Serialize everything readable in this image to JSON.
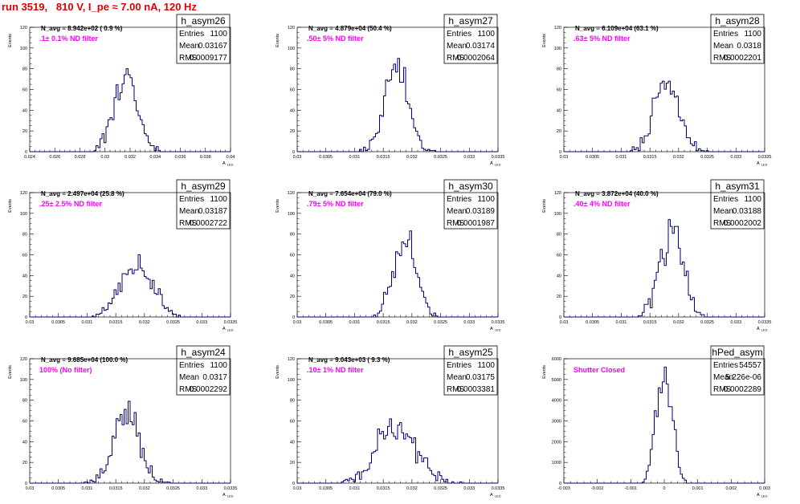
{
  "run_title": "run 3519,   810 V, I_pe ≈ 7.00 nA, 120 Hz",
  "chart_data": [
    {
      "type": "bar",
      "name": "h_asym26",
      "n_avg": "N_avg = 8.942e+02 ( 0.9 %)",
      "filter": ".1± 0.1% ND filter",
      "entries": "1100",
      "mean": "0.03167",
      "rms": "0.0009177",
      "ylabel": "Events",
      "xlabel": "A_LED",
      "ylim": [
        0,
        120
      ],
      "yticks": [
        "0",
        "20",
        "40",
        "60",
        "80",
        "100",
        "120"
      ],
      "xlim": [
        0.024,
        0.04
      ],
      "xticks": [
        "0.024",
        "0.026",
        "0.028",
        "0.03",
        "0.032",
        "0.034",
        "0.036",
        "0.038",
        "0.04"
      ],
      "stats_label": {
        "entries": "Entries",
        "mean": "Mean",
        "rms": "RMS"
      },
      "peak": 80
    },
    {
      "type": "bar",
      "name": "h_asym27",
      "n_avg": "N_avg = 4.879e+04 (50.4 %)",
      "filter": ".50± 5% ND filter",
      "entries": "1100",
      "mean": "0.03174",
      "rms": "0.0002064",
      "ylabel": "Events",
      "xlabel": "A_LED",
      "ylim": [
        0,
        120
      ],
      "yticks": [
        "0",
        "20",
        "40",
        "60",
        "80",
        "100",
        "120"
      ],
      "xlim": [
        0.03,
        0.0335
      ],
      "xticks": [
        "0.03",
        "0.0305",
        "0.031",
        "0.0315",
        "0.032",
        "0.0325",
        "0.033",
        "0.0335"
      ],
      "stats_label": {
        "entries": "Entries",
        "mean": "Mean",
        "rms": "RMS"
      },
      "peak": 90
    },
    {
      "type": "bar",
      "name": "h_asym28",
      "n_avg": "N_avg = 6.109e+04 (63.1 %)",
      "filter": ".63± 5% ND filter",
      "entries": "1100",
      "mean": "0.0318",
      "rms": "0.0002201",
      "ylabel": "Events",
      "xlabel": "A_LED",
      "ylim": [
        0,
        120
      ],
      "yticks": [
        "0",
        "20",
        "40",
        "60",
        "80",
        "100",
        "120"
      ],
      "xlim": [
        0.03,
        0.0335
      ],
      "xticks": [
        "0.03",
        "0.0305",
        "0.031",
        "0.0315",
        "0.032",
        "0.0325",
        "0.033",
        "0.0335"
      ],
      "stats_label": {
        "entries": "Entries",
        "mean": "Mean",
        "rms": "RMS"
      },
      "peak": 68
    },
    {
      "type": "bar",
      "name": "h_asym29",
      "n_avg": "N_avg = 2.497e+04 (25.8 %)",
      "filter": ".25± 2.5% ND filter",
      "entries": "1100",
      "mean": "0.03187",
      "rms": "0.0002722",
      "ylabel": "Events",
      "xlabel": "A_LED",
      "ylim": [
        0,
        120
      ],
      "yticks": [
        "0",
        "20",
        "40",
        "60",
        "80",
        "100",
        "120"
      ],
      "xlim": [
        0.03,
        0.0335
      ],
      "xticks": [
        "0.03",
        "0.0305",
        "0.031",
        "0.0315",
        "0.032",
        "0.0325",
        "0.033",
        "0.0335"
      ],
      "stats_label": {
        "entries": "Entries",
        "mean": "Mean",
        "rms": "RMS"
      },
      "peak": 60
    },
    {
      "type": "bar",
      "name": "h_asym30",
      "n_avg": "N_avg = 7.654e+04 (79.0 %)",
      "filter": ".79± 5% ND filter",
      "entries": "1100",
      "mean": "0.03189",
      "rms": "0.0001987",
      "ylabel": "Events",
      "xlabel": "A_LED",
      "ylim": [
        0,
        120
      ],
      "yticks": [
        "0",
        "20",
        "40",
        "60",
        "80",
        "100",
        "120"
      ],
      "xlim": [
        0.03,
        0.0335
      ],
      "xticks": [
        "0.03",
        "0.0305",
        "0.031",
        "0.0315",
        "0.032",
        "0.0325",
        "0.033",
        "0.0335"
      ],
      "stats_label": {
        "entries": "Entries",
        "mean": "Mean",
        "rms": "RMS"
      },
      "peak": 83
    },
    {
      "type": "bar",
      "name": "h_asym31",
      "n_avg": "N_avg = 3.872e+04 (40.0 %)",
      "filter": ".40± 4% ND filter",
      "entries": "1100",
      "mean": "0.03188",
      "rms": "0.0002002",
      "ylabel": "Events",
      "xlabel": "A_LED",
      "ylim": [
        0,
        120
      ],
      "yticks": [
        "0",
        "20",
        "40",
        "60",
        "80",
        "100",
        "120"
      ],
      "xlim": [
        0.03,
        0.0335
      ],
      "xticks": [
        "0.03",
        "0.0305",
        "0.031",
        "0.0315",
        "0.032",
        "0.0325",
        "0.033",
        "0.0335"
      ],
      "stats_label": {
        "entries": "Entries",
        "mean": "Mean",
        "rms": "RMS"
      },
      "peak": 94
    },
    {
      "type": "bar",
      "name": "h_asym24",
      "n_avg": "N_avg = 9.685e+04 (100.0 %)",
      "filter": "100% (No filter)",
      "entries": "1100",
      "mean": "0.0317",
      "rms": "0.0002292",
      "ylabel": "Events",
      "xlabel": "A_LED",
      "ylim": [
        0,
        120
      ],
      "yticks": [
        "0",
        "20",
        "40",
        "60",
        "80",
        "100",
        "120"
      ],
      "xlim": [
        0.03,
        0.0335
      ],
      "xticks": [
        "0.03",
        "0.0305",
        "0.031",
        "0.0315",
        "0.032",
        "0.0325",
        "0.033",
        "0.0335"
      ],
      "stats_label": {
        "entries": "Entries",
        "mean": "Mean",
        "rms": "RMS"
      },
      "peak": 79
    },
    {
      "type": "bar",
      "name": "h_asym25",
      "n_avg": "N_avg = 9.043e+03 ( 9.3 %)",
      "filter": ".10± 1% ND filter",
      "entries": "1100",
      "mean": "0.03175",
      "rms": "0.0003381",
      "ylabel": "Events",
      "xlabel": "A_LED",
      "ylim": [
        0,
        120
      ],
      "yticks": [
        "0",
        "20",
        "40",
        "60",
        "80",
        "100",
        "120"
      ],
      "xlim": [
        0.03,
        0.0335
      ],
      "xticks": [
        "0.03",
        "0.0305",
        "0.031",
        "0.0315",
        "0.032",
        "0.0325",
        "0.033",
        "0.0335"
      ],
      "stats_label": {
        "entries": "Entries",
        "mean": "Mean",
        "rms": "RMS"
      },
      "peak": 62
    },
    {
      "type": "bar",
      "name": "hPed_asym",
      "n_avg": "",
      "filter": "Shutter Closed",
      "entries": "54557",
      "mean": "5.226e-06",
      "rms": "0.0002289",
      "ylabel": "Events",
      "xlabel": "A_LED",
      "ylim": [
        0,
        6000
      ],
      "yticks": [
        "0",
        "1000",
        "2000",
        "3000",
        "4000",
        "5000",
        "6000"
      ],
      "xlim": [
        -0.003,
        0.003
      ],
      "xticks": [
        "-0.003",
        "-0.002",
        "-0.001",
        "0",
        "0.001",
        "0.002",
        "0.003"
      ],
      "stats_label": {
        "entries": "Entries",
        "mean": "Mean",
        "rms": "RMS"
      },
      "peak": 5600
    }
  ]
}
